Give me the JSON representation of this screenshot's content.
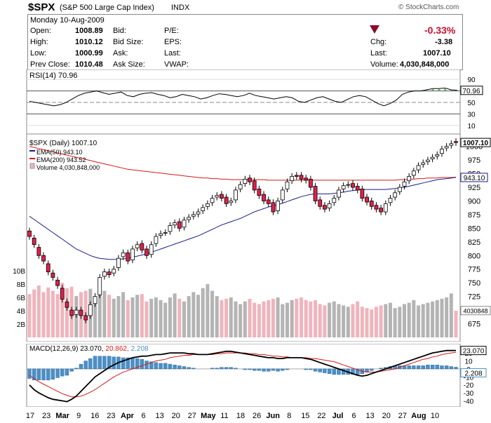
{
  "header": {
    "symbol": "$SPX",
    "name": "(S&P 500 Large Cap Index)",
    "exchange": "INDX",
    "copyright": "© StockCharts.com"
  },
  "quote": {
    "date": "Monday  10-Aug-2009",
    "open_label": "Open:",
    "open": "1008.89",
    "high_label": "High:",
    "high": "1010.12",
    "low_label": "Low:",
    "low": "1000.99",
    "prev_label": "Prev Close:",
    "prev": "1010.48",
    "bid_label": "Bid:",
    "bidsize_label": "Bid Size:",
    "ask_label": "Ask:",
    "asksize_label": "Ask Size:",
    "pe_label": "P/E:",
    "eps_label": "EPS:",
    "last_label2": "Last:",
    "vwap_label": "VWAP:",
    "change_pct": "-0.33%",
    "chg_label": "Chg:",
    "chg": "-3.38",
    "last_label": "Last:",
    "last": "1007.10",
    "volume_label": "Volume:",
    "volume": "4,030,848,000",
    "down_color": "#8b0a2a",
    "arrow_icon": "down-triangle-icon"
  },
  "chart_data": [
    {
      "type": "line",
      "panel": "RSI",
      "legend": "RSI(14) 70.96",
      "last_value_label": "70.96",
      "ticks": [
        "90",
        "70",
        "50",
        "30",
        "10"
      ],
      "ylim": [
        0,
        100
      ],
      "values": [
        52,
        50,
        48,
        46,
        44,
        46,
        50,
        56,
        62,
        66,
        68,
        70,
        67,
        64,
        66,
        68,
        62,
        60,
        64,
        66,
        67,
        64,
        62,
        58,
        60,
        64,
        62,
        60,
        56,
        58,
        62,
        65,
        64,
        62,
        60,
        62,
        66,
        62,
        60,
        58,
        56,
        58,
        60,
        58,
        52,
        50,
        54,
        58,
        60,
        56,
        52,
        50,
        55,
        60,
        62,
        60,
        54,
        48,
        44,
        48,
        54,
        64,
        68,
        70,
        70,
        72,
        74,
        74,
        75,
        72,
        71
      ],
      "line_color": "#000000"
    },
    {
      "type": "candlestick",
      "panel": "Price",
      "legend_title": "$SPX (Daily) 1007.10",
      "legend_ema50": "EMA(50) 943.10",
      "legend_ema200": "EMA(200) 943.52",
      "legend_volume": "Volume 4,030,848,000",
      "ema50_color": "#1a1a8c",
      "ema200_color": "#d41a1a",
      "up_color": "#ffffff",
      "down_color": "#e0204a",
      "ylim": [
        650,
        1015
      ],
      "price_ticks": [
        "1000",
        "975",
        "950",
        "925",
        "900",
        "875",
        "850",
        "825",
        "800",
        "775",
        "750",
        "725",
        "700",
        "675"
      ],
      "last_price_label": "1007.10",
      "ema50_label": "943.10",
      "volume_ticks": [
        "10B",
        "8B",
        "6B",
        "4B",
        "2B"
      ],
      "volume_last_label": "4030848",
      "close": [
        835,
        820,
        800,
        790,
        770,
        760,
        745,
        720,
        705,
        690,
        700,
        690,
        682,
        710,
        725,
        760,
        770,
        765,
        775,
        795,
        805,
        790,
        812,
        820,
        810,
        800,
        820,
        835,
        840,
        842,
        855,
        860,
        850,
        865,
        870,
        875,
        880,
        888,
        895,
        905,
        910,
        905,
        895,
        900,
        920,
        930,
        940,
        935,
        920,
        910,
        900,
        895,
        880,
        900,
        920,
        935,
        945,
        945,
        940,
        938,
        925,
        900,
        890,
        885,
        895,
        905,
        920,
        928,
        930,
        925,
        920,
        905,
        898,
        890,
        885,
        880,
        895,
        905,
        915,
        925,
        935,
        945,
        955,
        965,
        970,
        975,
        980,
        985,
        995,
        1000,
        1005,
        1007
      ],
      "open": [
        845,
        832,
        815,
        800,
        785,
        768,
        755,
        740,
        715,
        700,
        692,
        700,
        690,
        690,
        712,
        728,
        762,
        770,
        768,
        778,
        798,
        805,
        792,
        814,
        822,
        812,
        802,
        822,
        837,
        842,
        844,
        856,
        862,
        852,
        866,
        872,
        876,
        882,
        890,
        897,
        907,
        912,
        907,
        897,
        902,
        922,
        932,
        942,
        937,
        922,
        912,
        902,
        897,
        882,
        902,
        922,
        937,
        947,
        947,
        942,
        940,
        927,
        902,
        892,
        887,
        897,
        907,
        922,
        930,
        932,
        927,
        922,
        907,
        900,
        892,
        887,
        880,
        897,
        907,
        917,
        927,
        937,
        947,
        957,
        967,
        972,
        977,
        982,
        987,
        997,
        1002,
        1008.89
      ],
      "ema50": [
        872,
        866,
        860,
        854,
        848,
        842,
        836,
        830,
        824,
        818,
        812,
        808,
        804,
        800,
        797,
        795,
        794,
        793,
        793,
        793,
        794,
        795,
        797,
        799,
        801,
        803,
        806,
        809,
        812,
        815,
        818,
        821,
        824,
        827,
        830,
        833,
        836,
        840,
        844,
        848,
        852,
        856,
        859,
        862,
        865,
        868,
        872,
        876,
        880,
        883,
        886,
        889,
        891,
        893,
        896,
        899,
        902,
        905,
        908,
        910,
        912,
        913,
        913,
        913,
        913,
        914,
        915,
        916,
        918,
        919,
        920,
        921,
        921,
        921,
        921,
        921,
        921,
        922,
        923,
        924,
        925,
        927,
        929,
        931,
        933,
        935,
        937,
        939,
        940,
        941,
        942,
        943.1
      ],
      "ema200": [
        1000,
        998,
        996,
        994,
        992,
        990,
        988,
        986,
        984,
        982,
        980,
        978,
        976,
        974,
        972,
        970,
        968,
        966,
        964,
        962,
        960,
        958,
        957,
        956,
        955,
        954,
        953,
        952,
        951,
        950,
        949,
        948,
        947,
        946,
        945,
        944,
        943,
        942,
        942,
        941,
        941,
        940,
        940,
        939,
        939,
        939,
        939,
        939,
        939,
        939,
        939,
        938,
        938,
        938,
        938,
        938,
        938,
        938,
        938,
        938,
        938,
        938,
        938,
        938,
        938,
        938,
        938,
        938,
        938,
        938,
        938,
        938,
        938,
        938,
        938,
        938,
        938,
        938,
        938,
        939,
        939,
        940,
        940,
        941,
        941,
        942,
        942,
        942,
        943,
        943,
        943,
        943.52
      ],
      "volume": [
        6.5,
        7.2,
        7.8,
        6.8,
        7.5,
        7.0,
        6.5,
        8.2,
        7.4,
        7.6,
        6.2,
        6.8,
        7.0,
        7.3,
        6.0,
        6.6,
        7.0,
        6.4,
        5.8,
        6.2,
        6.8,
        5.6,
        6.0,
        6.4,
        6.5,
        5.4,
        5.8,
        6.0,
        5.6,
        5.2,
        6.0,
        6.6,
        5.8,
        5.4,
        6.2,
        6.8,
        6.4,
        7.4,
        8.0,
        7.0,
        6.2,
        5.6,
        5.8,
        6.0,
        5.4,
        5.0,
        5.4,
        5.8,
        5.2,
        5.0,
        5.4,
        5.6,
        5.8,
        6.0,
        5.0,
        5.2,
        5.6,
        5.8,
        6.0,
        5.6,
        5.4,
        5.6,
        5.0,
        4.8,
        5.2,
        5.4,
        5.0,
        4.8,
        4.6,
        5.0,
        5.4,
        4.6,
        4.4,
        4.2,
        4.6,
        4.8,
        5.0,
        5.2,
        4.4,
        4.6,
        5.0,
        5.2,
        5.6,
        4.8,
        5.0,
        5.2,
        5.4,
        5.6,
        5.8,
        6.0,
        6.6,
        4.0
      ]
    },
    {
      "type": "line",
      "panel": "MACD",
      "legend_base": "MACD(12,26,9) 23.070,",
      "legend_signal": "20.862,",
      "legend_hist": "2.208",
      "signal_color": "#d41a1a",
      "hist_color": "#4a90c8",
      "ticks": [
        "20",
        "10",
        "0",
        "-10",
        "-20",
        "-30",
        "-40"
      ],
      "macd_label": "23.070",
      "hist_label": "2.208",
      "ylim": [
        -44,
        28
      ],
      "macd": [
        -20,
        -26,
        -30,
        -33,
        -36,
        -38,
        -39,
        -40,
        -41,
        -38,
        -34,
        -28,
        -22,
        -16,
        -10,
        -6,
        -2,
        2,
        5,
        8,
        10,
        12,
        14,
        15,
        16,
        16,
        17,
        18,
        18,
        19,
        20,
        20,
        20,
        20,
        19,
        19,
        18,
        18,
        18,
        19,
        20,
        21,
        22,
        22,
        21,
        20,
        19,
        18,
        17,
        16,
        15,
        14,
        14,
        13,
        13,
        14,
        14,
        14,
        14,
        13,
        12,
        10,
        8,
        6,
        4,
        2,
        0,
        -2,
        -4,
        -6,
        -8,
        -9,
        -8,
        -6,
        -4,
        -2,
        0,
        2,
        4,
        6,
        8,
        10,
        12,
        14,
        16,
        18,
        20,
        21,
        22,
        23,
        23,
        23.07
      ],
      "signal": [
        -8,
        -12,
        -16,
        -19,
        -22,
        -25,
        -28,
        -31,
        -33,
        -35,
        -35,
        -34,
        -32,
        -29,
        -26,
        -22,
        -18,
        -14,
        -10,
        -7,
        -4,
        -2,
        0,
        2,
        4,
        6,
        8,
        10,
        11,
        12,
        14,
        15,
        16,
        17,
        17,
        18,
        18,
        18,
        18,
        18,
        19,
        19,
        20,
        20,
        20,
        20,
        20,
        19,
        19,
        18,
        18,
        17,
        16,
        16,
        15,
        15,
        14,
        14,
        14,
        14,
        13,
        13,
        12,
        11,
        10,
        9,
        7,
        5,
        3,
        1,
        -1,
        -3,
        -4,
        -4,
        -4,
        -3,
        -2,
        -1,
        0,
        2,
        4,
        6,
        8,
        10,
        12,
        13,
        15,
        16,
        18,
        19,
        20,
        20.862
      ]
    }
  ],
  "x_axis": {
    "labels": [
      {
        "text": "17",
        "b": false
      },
      {
        "text": "23",
        "b": false
      },
      {
        "text": "Mar",
        "b": true
      },
      {
        "text": "9",
        "b": false
      },
      {
        "text": "16",
        "b": false
      },
      {
        "text": "23",
        "b": false
      },
      {
        "text": "Apr",
        "b": true
      },
      {
        "text": "6",
        "b": false
      },
      {
        "text": "13",
        "b": false
      },
      {
        "text": "20",
        "b": false
      },
      {
        "text": "27",
        "b": false
      },
      {
        "text": "May",
        "b": true
      },
      {
        "text": "11",
        "b": false
      },
      {
        "text": "18",
        "b": false
      },
      {
        "text": "26",
        "b": false
      },
      {
        "text": "Jun",
        "b": true
      },
      {
        "text": "8",
        "b": false
      },
      {
        "text": "15",
        "b": false
      },
      {
        "text": "22",
        "b": false
      },
      {
        "text": "Jul",
        "b": true
      },
      {
        "text": "6",
        "b": false
      },
      {
        "text": "13",
        "b": false
      },
      {
        "text": "20",
        "b": false
      },
      {
        "text": "27",
        "b": false
      },
      {
        "text": "Aug",
        "b": true
      },
      {
        "text": "10",
        "b": false
      }
    ]
  }
}
